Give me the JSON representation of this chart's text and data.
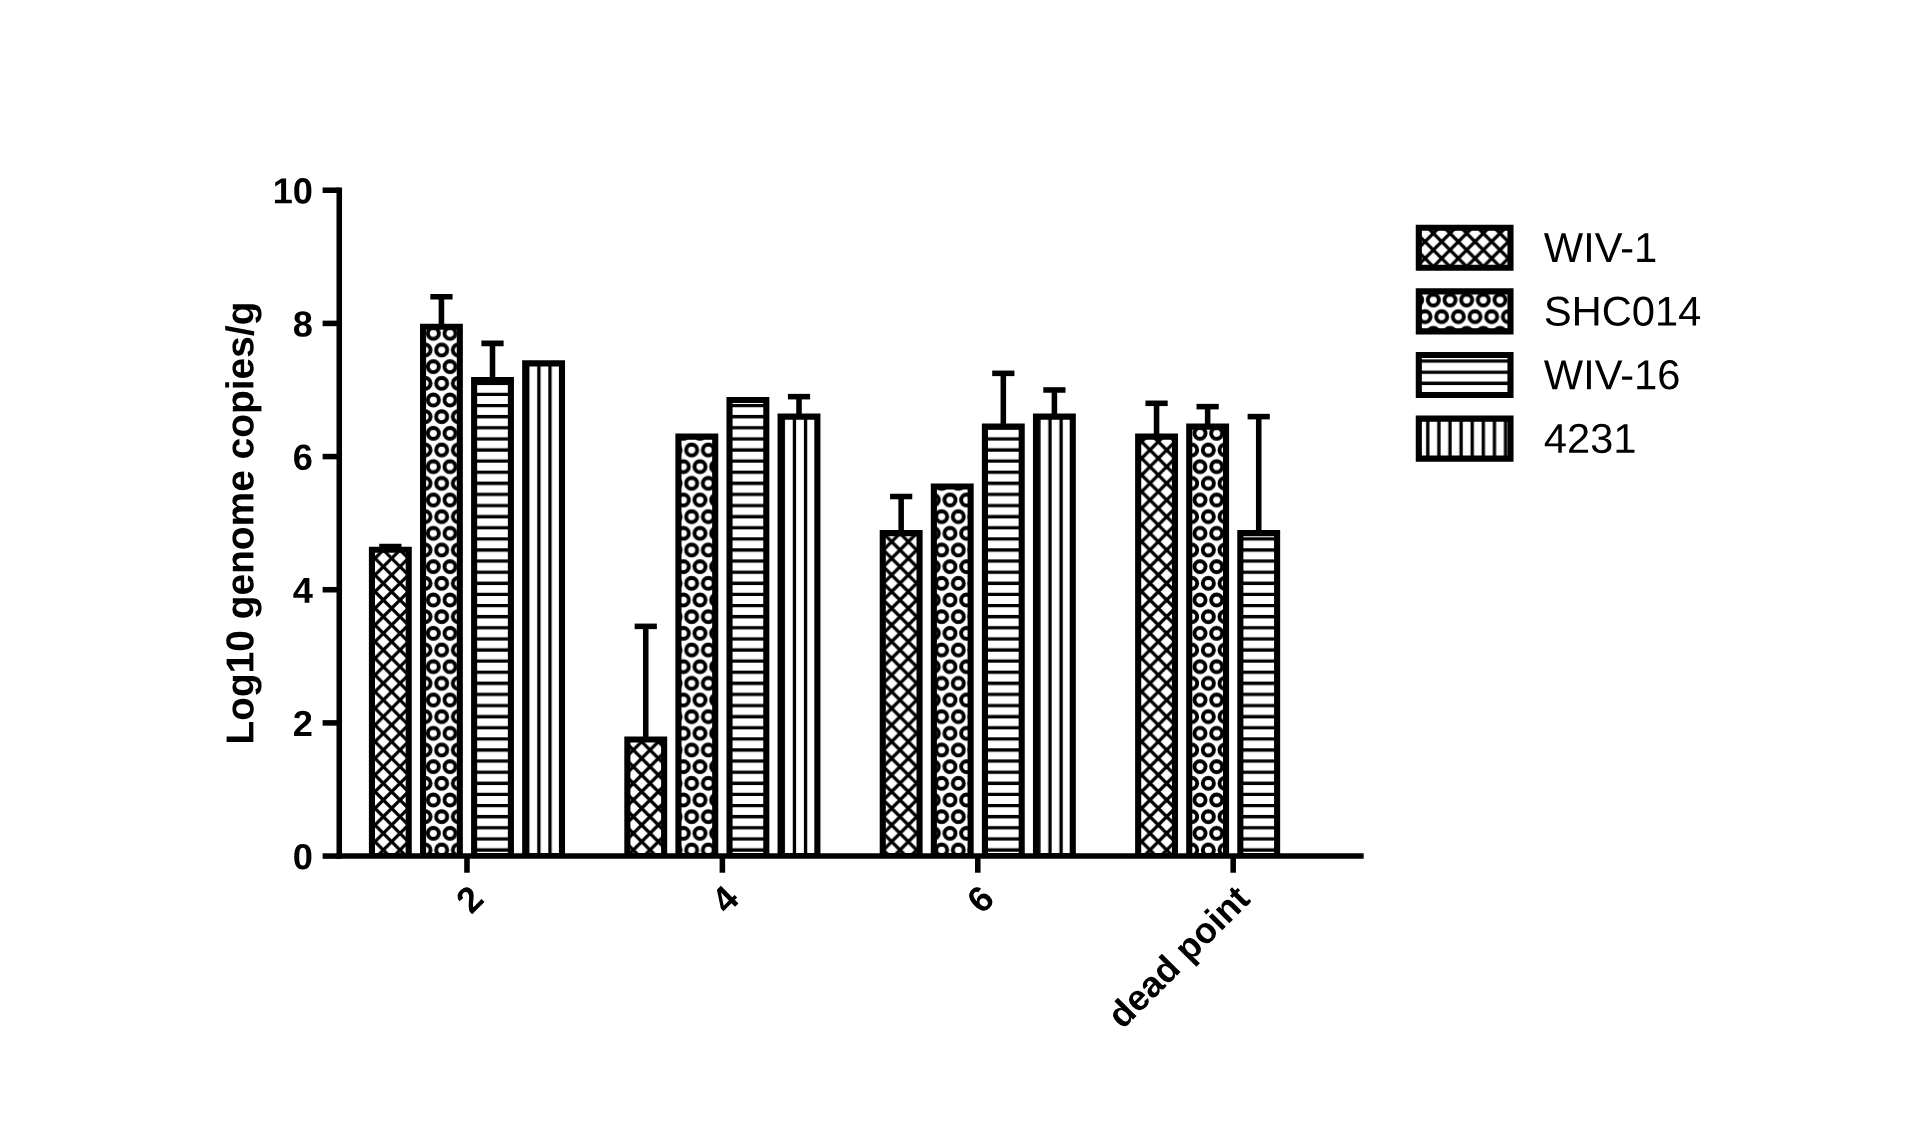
{
  "chart_data": {
    "type": "bar",
    "ylabel": "Log10 genome copies/g",
    "categories": [
      "2",
      "4",
      "6",
      "dead point"
    ],
    "ylim": [
      0,
      10
    ],
    "yticks": [
      0,
      2,
      4,
      6,
      8,
      10
    ],
    "grid": false,
    "legend": "right",
    "series": [
      {
        "name": "WIV-1",
        "color": "#000000",
        "values": [
          4.6,
          1.75,
          4.85,
          6.3
        ],
        "errors": [
          0.05,
          1.7,
          0.55,
          0.5
        ]
      },
      {
        "name": "SHC014",
        "color": "#000000",
        "values": [
          7.95,
          6.3,
          5.55,
          6.45
        ],
        "errors": [
          0.45,
          null,
          null,
          0.3
        ]
      },
      {
        "name": "WIV-16",
        "color": "#000000",
        "values": [
          7.15,
          6.85,
          6.45,
          4.85
        ],
        "errors": [
          0.55,
          null,
          0.8,
          1.75
        ]
      },
      {
        "name": "4231",
        "color": "#000000",
        "values": [
          7.4,
          6.6,
          6.6,
          null
        ],
        "errors": [
          null,
          0.3,
          0.4,
          null
        ]
      }
    ]
  }
}
